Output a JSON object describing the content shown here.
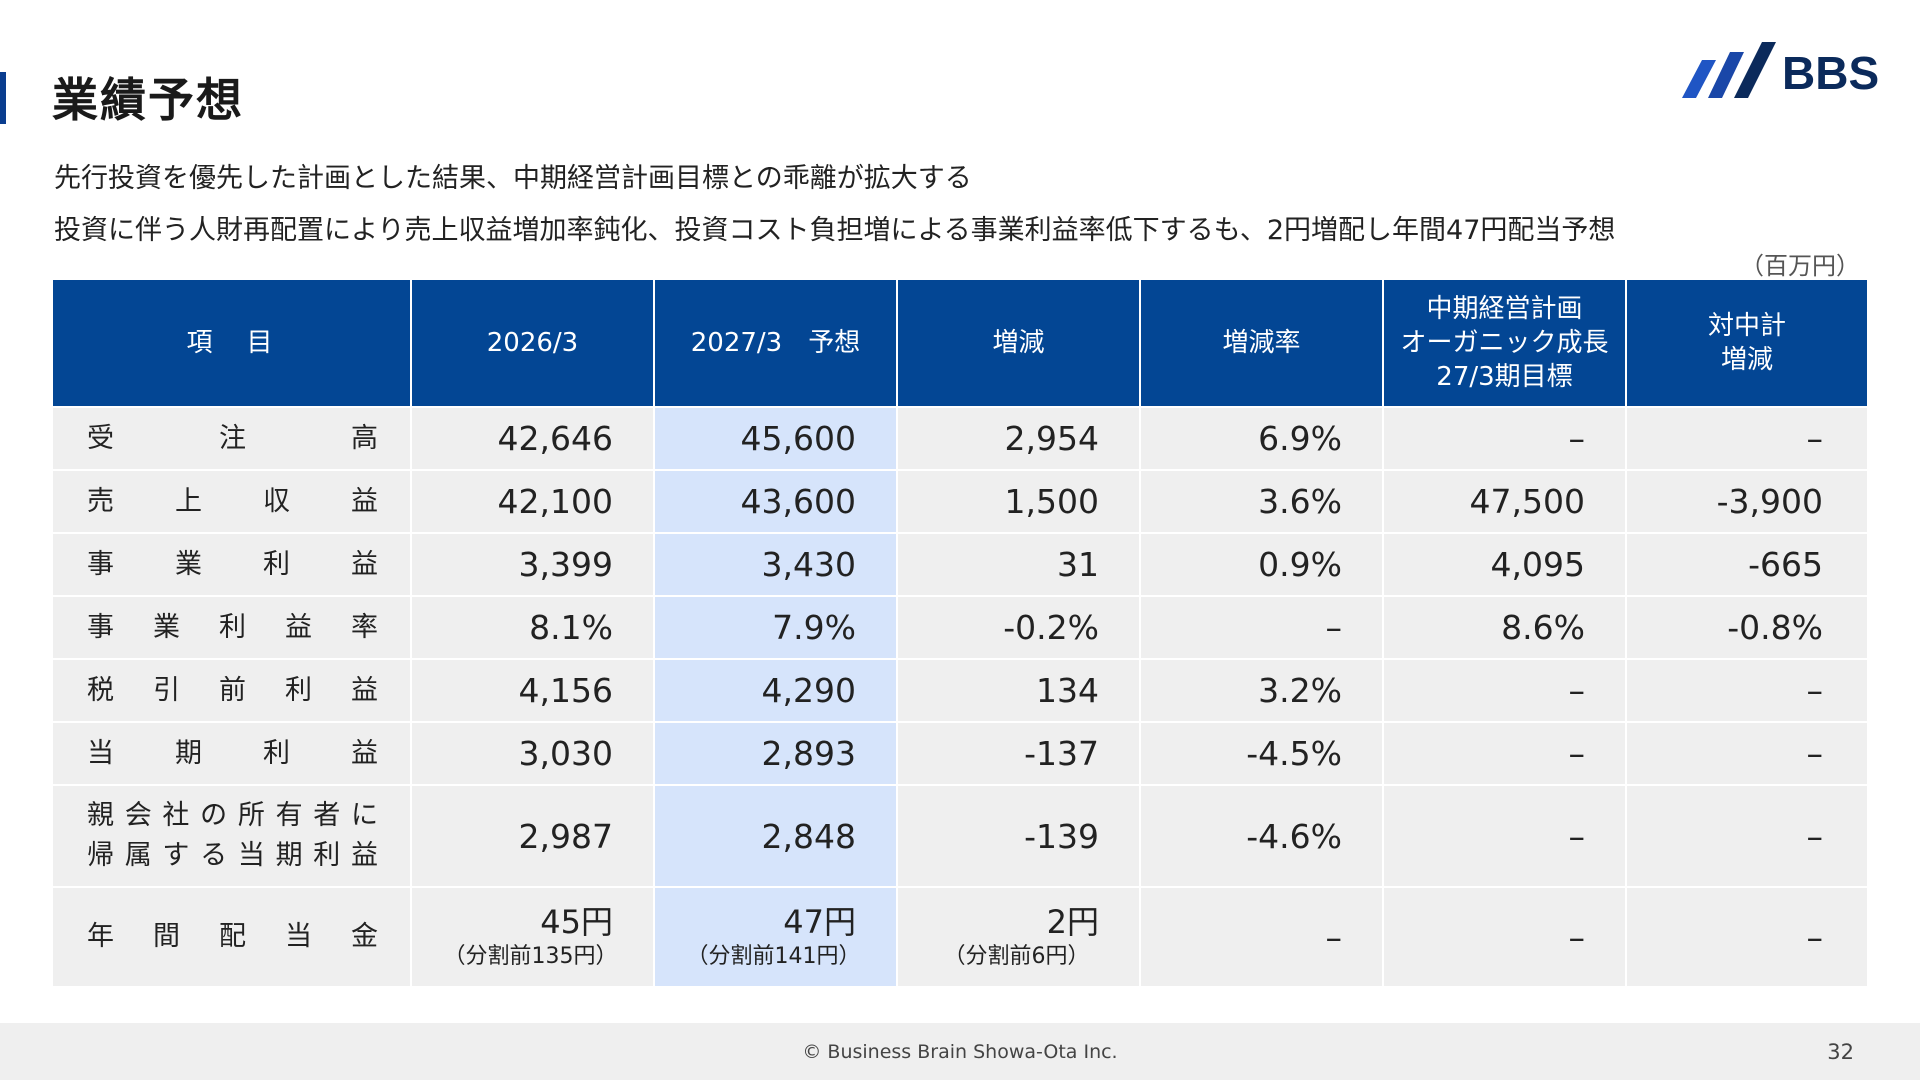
{
  "page": {
    "title": "業績予想",
    "subtitle_1": "先行投資を優先した計画とした結果、中期経営計画目標との乖離が拡大する",
    "subtitle_2": "投資に伴う人財再配置により売上収益増加率鈍化、投資コスト負担増による事業利益率低下するも、2円増配し年間47円配当予想",
    "unit": "（百万円）"
  },
  "logo": {
    "text": "BBS",
    "colors": {
      "dark": "#0b2a5b",
      "blue": "#1f55c4"
    }
  },
  "table": {
    "headers": [
      "項　目",
      "2026/3",
      "2027/3　予想",
      "増減",
      "増減率",
      "中期経営計画\nオーガニック成長\n27/3期目標",
      "対中計\n増減"
    ],
    "rows": [
      {
        "label": "受注高",
        "values": [
          "42,646",
          "45,600",
          "2,954",
          "6.9%",
          "–",
          "–"
        ]
      },
      {
        "label": "売上収益",
        "values": [
          "42,100",
          "43,600",
          "1,500",
          "3.6%",
          "47,500",
          "-3,900"
        ]
      },
      {
        "label": "事業利益",
        "values": [
          "3,399",
          "3,430",
          "31",
          "0.9%",
          "4,095",
          "-665"
        ]
      },
      {
        "label": "事業利益率",
        "values": [
          "8.1%",
          "7.9%",
          "-0.2%",
          "–",
          "8.6%",
          "-0.8%"
        ]
      },
      {
        "label": "税引前利益",
        "values": [
          "4,156",
          "4,290",
          "134",
          "3.2%",
          "–",
          "–"
        ]
      },
      {
        "label": "当期利益",
        "values": [
          "3,030",
          "2,893",
          "-137",
          "-4.5%",
          "–",
          "–"
        ]
      },
      {
        "label_line1": "親会社の所有者に",
        "label_line2": "帰属する当期利益",
        "values": [
          "2,987",
          "2,848",
          "-139",
          "-4.6%",
          "–",
          "–"
        ]
      }
    ],
    "dividend": {
      "label": "年間配当金",
      "values": [
        "45円",
        "47円",
        "2円"
      ],
      "notes": [
        "（分割前135円）",
        "（分割前141円）",
        "（分割前6円）"
      ],
      "rest": [
        "–",
        "–",
        "–"
      ]
    },
    "colors": {
      "header_bg": "#034694",
      "highlight_bg": "#d6e4fb",
      "row_bg": "#efefef"
    }
  },
  "footer": {
    "copyright": "© Business Brain Showa-Ota Inc.",
    "page_number": "32"
  }
}
